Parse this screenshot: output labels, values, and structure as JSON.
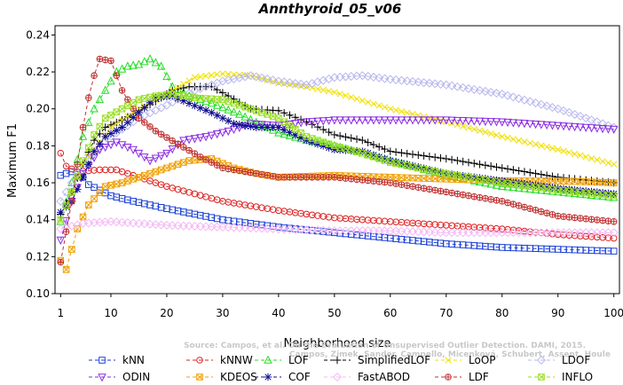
{
  "chart_data": {
    "type": "line",
    "title": "Annthyroid_05_v06",
    "xlabel": "Neighborhood size",
    "ylabel": "Maximum F1",
    "xlim": [
      0,
      101
    ],
    "ylim": [
      0.1,
      0.245
    ],
    "x_ticks": [
      1,
      10,
      20,
      30,
      40,
      50,
      60,
      70,
      80,
      90,
      100
    ],
    "y_ticks": [
      0.1,
      0.12,
      0.14,
      0.16,
      0.18,
      0.2,
      0.22,
      0.24
    ],
    "y_tick_labels": [
      "0.10",
      "0.12",
      "0.14",
      "0.16",
      "0.18",
      "0.20",
      "0.22",
      "0.24"
    ],
    "legend_position": "bottom",
    "watermark_lines": [
      "Source: Campos, et al. On the Evaluation of Unsupervised Outlier Detection. DAMI, 2015.",
      "Campos, Zimek, Sander, Campello, Micenková, Schubert, Assent, Houle"
    ],
    "series": [
      {
        "name": "kNN",
        "color": "#1a3fd6",
        "marker": "square",
        "anchors": [
          [
            1,
            0.164
          ],
          [
            3,
            0.166
          ],
          [
            5,
            0.163
          ],
          [
            6,
            0.159
          ],
          [
            8,
            0.156
          ],
          [
            10,
            0.153
          ],
          [
            14,
            0.15
          ],
          [
            20,
            0.146
          ],
          [
            25,
            0.143
          ],
          [
            30,
            0.14
          ],
          [
            40,
            0.136
          ],
          [
            50,
            0.133
          ],
          [
            60,
            0.13
          ],
          [
            70,
            0.127
          ],
          [
            80,
            0.125
          ],
          [
            90,
            0.124
          ],
          [
            100,
            0.123
          ]
        ]
      },
      {
        "name": "kNNW",
        "color": "#e02020",
        "marker": "circle",
        "anchors": [
          [
            1,
            0.176
          ],
          [
            2,
            0.169
          ],
          [
            4,
            0.166
          ],
          [
            8,
            0.167
          ],
          [
            11,
            0.167
          ],
          [
            15,
            0.163
          ],
          [
            20,
            0.158
          ],
          [
            30,
            0.15
          ],
          [
            40,
            0.145
          ],
          [
            50,
            0.141
          ],
          [
            60,
            0.139
          ],
          [
            70,
            0.137
          ],
          [
            80,
            0.135
          ],
          [
            90,
            0.132
          ],
          [
            100,
            0.13
          ]
        ]
      },
      {
        "name": "LOF",
        "color": "#22dd22",
        "marker": "triangle-up",
        "anchors": [
          [
            1,
            0.139
          ],
          [
            3,
            0.16
          ],
          [
            5,
            0.185
          ],
          [
            7,
            0.2
          ],
          [
            9,
            0.21
          ],
          [
            11,
            0.22
          ],
          [
            13,
            0.223
          ],
          [
            15,
            0.224
          ],
          [
            17,
            0.227
          ],
          [
            19,
            0.223
          ],
          [
            21,
            0.212
          ],
          [
            24,
            0.207
          ],
          [
            28,
            0.203
          ],
          [
            33,
            0.197
          ],
          [
            40,
            0.187
          ],
          [
            45,
            0.183
          ],
          [
            50,
            0.18
          ],
          [
            60,
            0.172
          ],
          [
            70,
            0.164
          ],
          [
            80,
            0.158
          ],
          [
            90,
            0.155
          ],
          [
            100,
            0.152
          ]
        ]
      },
      {
        "name": "SimplifiedLOF",
        "color": "#000000",
        "marker": "plus",
        "anchors": [
          [
            1,
            0.143
          ],
          [
            3,
            0.155
          ],
          [
            5,
            0.17
          ],
          [
            7,
            0.183
          ],
          [
            9,
            0.19
          ],
          [
            12,
            0.194
          ],
          [
            15,
            0.199
          ],
          [
            18,
            0.204
          ],
          [
            21,
            0.21
          ],
          [
            24,
            0.212
          ],
          [
            28,
            0.212
          ],
          [
            31,
            0.207
          ],
          [
            35,
            0.2
          ],
          [
            40,
            0.199
          ],
          [
            45,
            0.193
          ],
          [
            50,
            0.186
          ],
          [
            55,
            0.183
          ],
          [
            60,
            0.177
          ],
          [
            70,
            0.173
          ],
          [
            80,
            0.168
          ],
          [
            90,
            0.163
          ],
          [
            100,
            0.16
          ]
        ]
      },
      {
        "name": "LoOP",
        "color": "#f0e000",
        "marker": "x",
        "anchors": [
          [
            1,
            0.14
          ],
          [
            5,
            0.17
          ],
          [
            10,
            0.19
          ],
          [
            15,
            0.2
          ],
          [
            20,
            0.208
          ],
          [
            25,
            0.217
          ],
          [
            30,
            0.219
          ],
          [
            35,
            0.218
          ],
          [
            40,
            0.214
          ],
          [
            45,
            0.212
          ],
          [
            50,
            0.209
          ],
          [
            60,
            0.2
          ],
          [
            70,
            0.193
          ],
          [
            80,
            0.185
          ],
          [
            90,
            0.178
          ],
          [
            100,
            0.17
          ]
        ]
      },
      {
        "name": "LDOF",
        "color": "#b8b8ee",
        "marker": "diamond",
        "anchors": [
          [
            1,
            0.15
          ],
          [
            5,
            0.17
          ],
          [
            10,
            0.185
          ],
          [
            15,
            0.195
          ],
          [
            20,
            0.202
          ],
          [
            25,
            0.21
          ],
          [
            30,
            0.215
          ],
          [
            35,
            0.218
          ],
          [
            40,
            0.215
          ],
          [
            45,
            0.213
          ],
          [
            50,
            0.217
          ],
          [
            55,
            0.218
          ],
          [
            60,
            0.216
          ],
          [
            70,
            0.213
          ],
          [
            80,
            0.208
          ],
          [
            90,
            0.2
          ],
          [
            100,
            0.19
          ]
        ]
      },
      {
        "name": "ODIN",
        "color": "#8a2be2",
        "marker": "triangle-down",
        "anchors": [
          [
            1,
            0.129
          ],
          [
            3,
            0.15
          ],
          [
            5,
            0.165
          ],
          [
            8,
            0.178
          ],
          [
            11,
            0.182
          ],
          [
            14,
            0.178
          ],
          [
            17,
            0.172
          ],
          [
            20,
            0.176
          ],
          [
            23,
            0.183
          ],
          [
            27,
            0.185
          ],
          [
            31,
            0.188
          ],
          [
            35,
            0.192
          ],
          [
            40,
            0.191
          ],
          [
            45,
            0.193
          ],
          [
            50,
            0.194
          ],
          [
            60,
            0.194
          ],
          [
            70,
            0.194
          ],
          [
            80,
            0.193
          ],
          [
            90,
            0.191
          ],
          [
            100,
            0.189
          ]
        ]
      },
      {
        "name": "KDEOS",
        "color": "#f0a000",
        "marker": "square-x",
        "anchors": [
          [
            1,
            0.118
          ],
          [
            2,
            0.113
          ],
          [
            4,
            0.135
          ],
          [
            6,
            0.148
          ],
          [
            9,
            0.158
          ],
          [
            12,
            0.16
          ],
          [
            16,
            0.164
          ],
          [
            20,
            0.168
          ],
          [
            24,
            0.172
          ],
          [
            28,
            0.173
          ],
          [
            32,
            0.168
          ],
          [
            36,
            0.165
          ],
          [
            40,
            0.163
          ],
          [
            50,
            0.164
          ],
          [
            60,
            0.163
          ],
          [
            70,
            0.162
          ],
          [
            80,
            0.161
          ],
          [
            90,
            0.161
          ],
          [
            100,
            0.16
          ]
        ]
      },
      {
        "name": "COF",
        "color": "#101090",
        "marker": "asterisk",
        "anchors": [
          [
            1,
            0.144
          ],
          [
            3,
            0.15
          ],
          [
            5,
            0.163
          ],
          [
            7,
            0.177
          ],
          [
            9,
            0.185
          ],
          [
            12,
            0.19
          ],
          [
            15,
            0.198
          ],
          [
            18,
            0.206
          ],
          [
            21,
            0.207
          ],
          [
            24,
            0.203
          ],
          [
            28,
            0.198
          ],
          [
            32,
            0.192
          ],
          [
            36,
            0.19
          ],
          [
            40,
            0.19
          ],
          [
            45,
            0.183
          ],
          [
            50,
            0.178
          ],
          [
            55,
            0.177
          ],
          [
            60,
            0.172
          ],
          [
            70,
            0.165
          ],
          [
            80,
            0.161
          ],
          [
            90,
            0.157
          ],
          [
            100,
            0.154
          ]
        ]
      },
      {
        "name": "FastABOD",
        "color": "#f4b8f4",
        "marker": "diamond",
        "anchors": [
          [
            1,
            0.135
          ],
          [
            5,
            0.138
          ],
          [
            10,
            0.139
          ],
          [
            20,
            0.137
          ],
          [
            30,
            0.136
          ],
          [
            40,
            0.135
          ],
          [
            50,
            0.134
          ],
          [
            60,
            0.134
          ],
          [
            70,
            0.133
          ],
          [
            80,
            0.133
          ],
          [
            90,
            0.133
          ],
          [
            100,
            0.133
          ]
        ]
      },
      {
        "name": "LDF",
        "color": "#c03030",
        "marker": "circle-plus",
        "anchors": [
          [
            1,
            0.117
          ],
          [
            3,
            0.15
          ],
          [
            5,
            0.19
          ],
          [
            6,
            0.206
          ],
          [
            7,
            0.218
          ],
          [
            8,
            0.227
          ],
          [
            10,
            0.226
          ],
          [
            12,
            0.21
          ],
          [
            15,
            0.195
          ],
          [
            18,
            0.188
          ],
          [
            22,
            0.181
          ],
          [
            26,
            0.174
          ],
          [
            30,
            0.168
          ],
          [
            40,
            0.163
          ],
          [
            50,
            0.163
          ],
          [
            60,
            0.16
          ],
          [
            70,
            0.155
          ],
          [
            80,
            0.15
          ],
          [
            90,
            0.142
          ],
          [
            100,
            0.139
          ]
        ]
      },
      {
        "name": "INFLO",
        "color": "#99dd22",
        "marker": "square-x",
        "anchors": [
          [
            1,
            0.14
          ],
          [
            3,
            0.155
          ],
          [
            5,
            0.172
          ],
          [
            7,
            0.186
          ],
          [
            9,
            0.195
          ],
          [
            12,
            0.2
          ],
          [
            15,
            0.205
          ],
          [
            18,
            0.207
          ],
          [
            21,
            0.208
          ],
          [
            25,
            0.206
          ],
          [
            30,
            0.205
          ],
          [
            35,
            0.2
          ],
          [
            40,
            0.195
          ],
          [
            45,
            0.185
          ],
          [
            50,
            0.18
          ],
          [
            55,
            0.176
          ],
          [
            60,
            0.171
          ],
          [
            70,
            0.165
          ],
          [
            80,
            0.16
          ],
          [
            90,
            0.156
          ],
          [
            100,
            0.153
          ]
        ]
      }
    ]
  }
}
